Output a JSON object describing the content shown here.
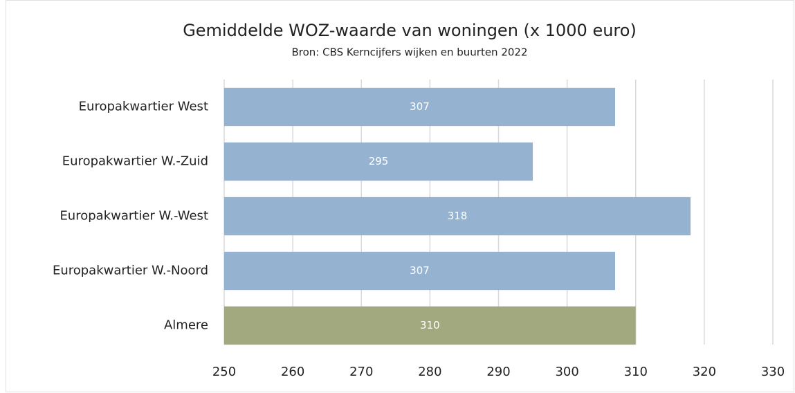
{
  "chart_data": {
    "type": "bar",
    "orientation": "horizontal",
    "title": "Gemiddelde WOZ-waarde van woningen (x 1000 euro)",
    "subtitle": "Bron: CBS Kerncijfers wijken en buurten 2022",
    "categories": [
      "Europakwartier West",
      "Europakwartier W.-Zuid",
      "Europakwartier W.-West",
      "Europakwartier W.-Noord",
      "Almere"
    ],
    "values": [
      307,
      295,
      318,
      307,
      310
    ],
    "colors": [
      "#95b3d0",
      "#95b3d0",
      "#95b3d0",
      "#95b3d0",
      "#a3a97f"
    ],
    "xlim": [
      250,
      330
    ],
    "xticks": [
      250,
      260,
      270,
      280,
      290,
      300,
      310,
      320,
      330
    ],
    "grid": true
  }
}
